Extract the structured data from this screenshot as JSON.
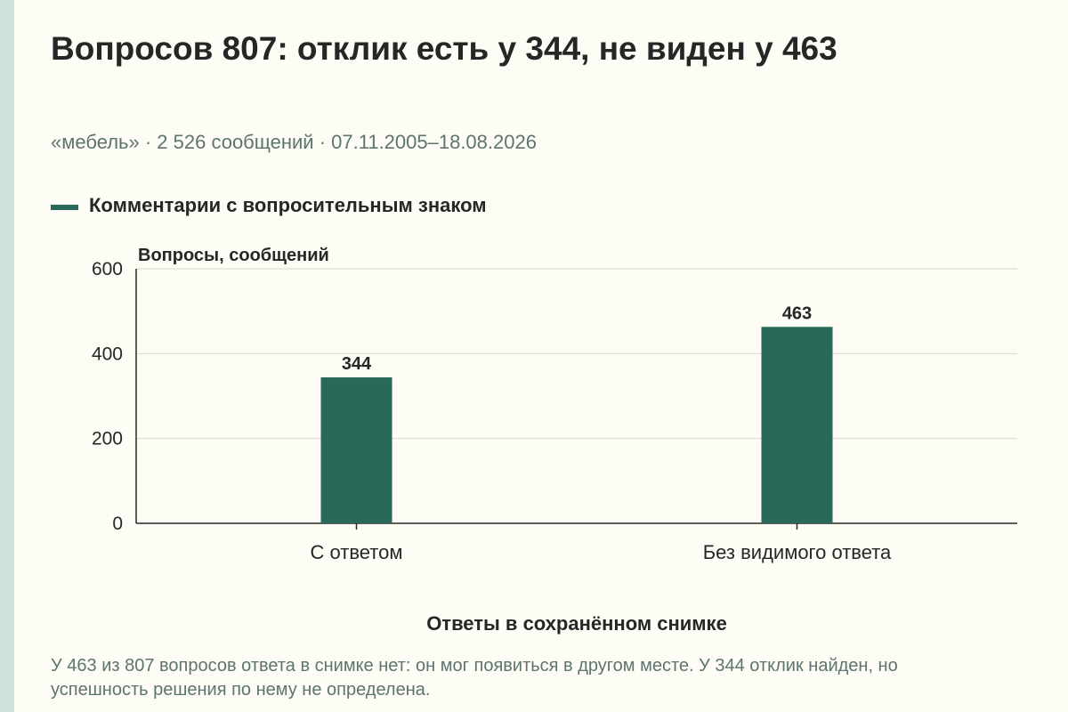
{
  "header": {
    "title": "Вопросов 807: отклик есть у 344, не виден у 463",
    "subtitle": "«мебель» · 2 526 сообщений · 07.11.2005–18.08.2026"
  },
  "colors": {
    "bar": "#28695a",
    "grid": "#d8d8d2",
    "axis": "#262626",
    "text": "#262626",
    "muted": "#5e7470"
  },
  "chart_data": {
    "type": "bar",
    "categories": [
      "С ответом",
      "Без видимого ответа"
    ],
    "series": [
      {
        "name": "Комментарии с вопросительным знаком",
        "values": [
          344,
          463
        ]
      }
    ],
    "data_labels": [
      "344",
      "463"
    ],
    "ylabel": "Вопросы, сообщений",
    "xlabel": "Ответы в сохранённом снимке",
    "ylim": [
      0,
      600
    ],
    "yticks": [
      0,
      200,
      400,
      600
    ],
    "grid": true,
    "legend": "top-left"
  },
  "footnote": "У 463 из 807 вопросов ответа в снимке нет: он мог появиться в другом месте. У 344 отклик найден, но успешность решения по нему не определена."
}
